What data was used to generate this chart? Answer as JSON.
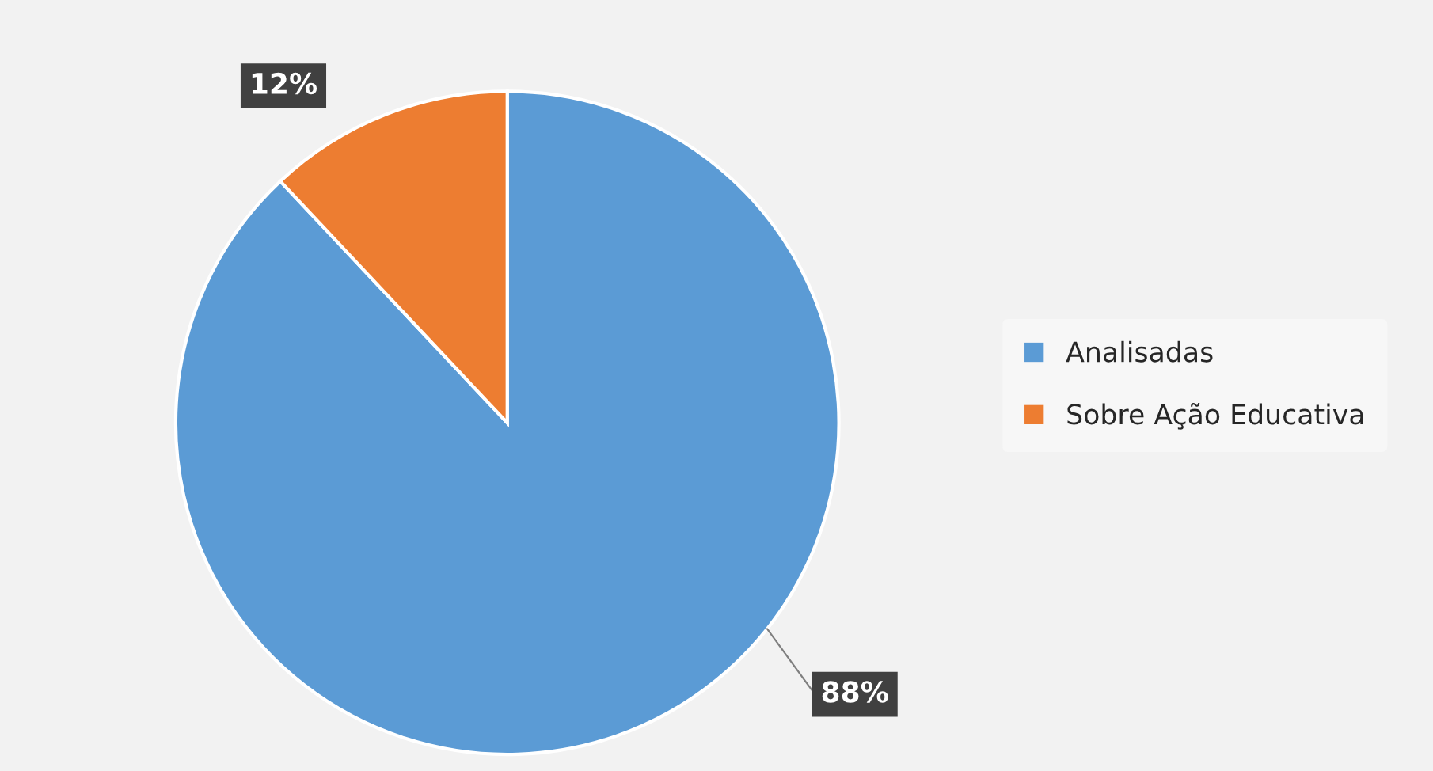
{
  "chart_data": {
    "type": "pie",
    "categories": [
      "Analisadas",
      "Sobre Ação Educativa"
    ],
    "values": [
      88,
      12
    ],
    "colors": [
      "#5b9bd5",
      "#ed7d31"
    ],
    "value_labels": [
      "88%",
      "12%"
    ],
    "legend": "right"
  }
}
